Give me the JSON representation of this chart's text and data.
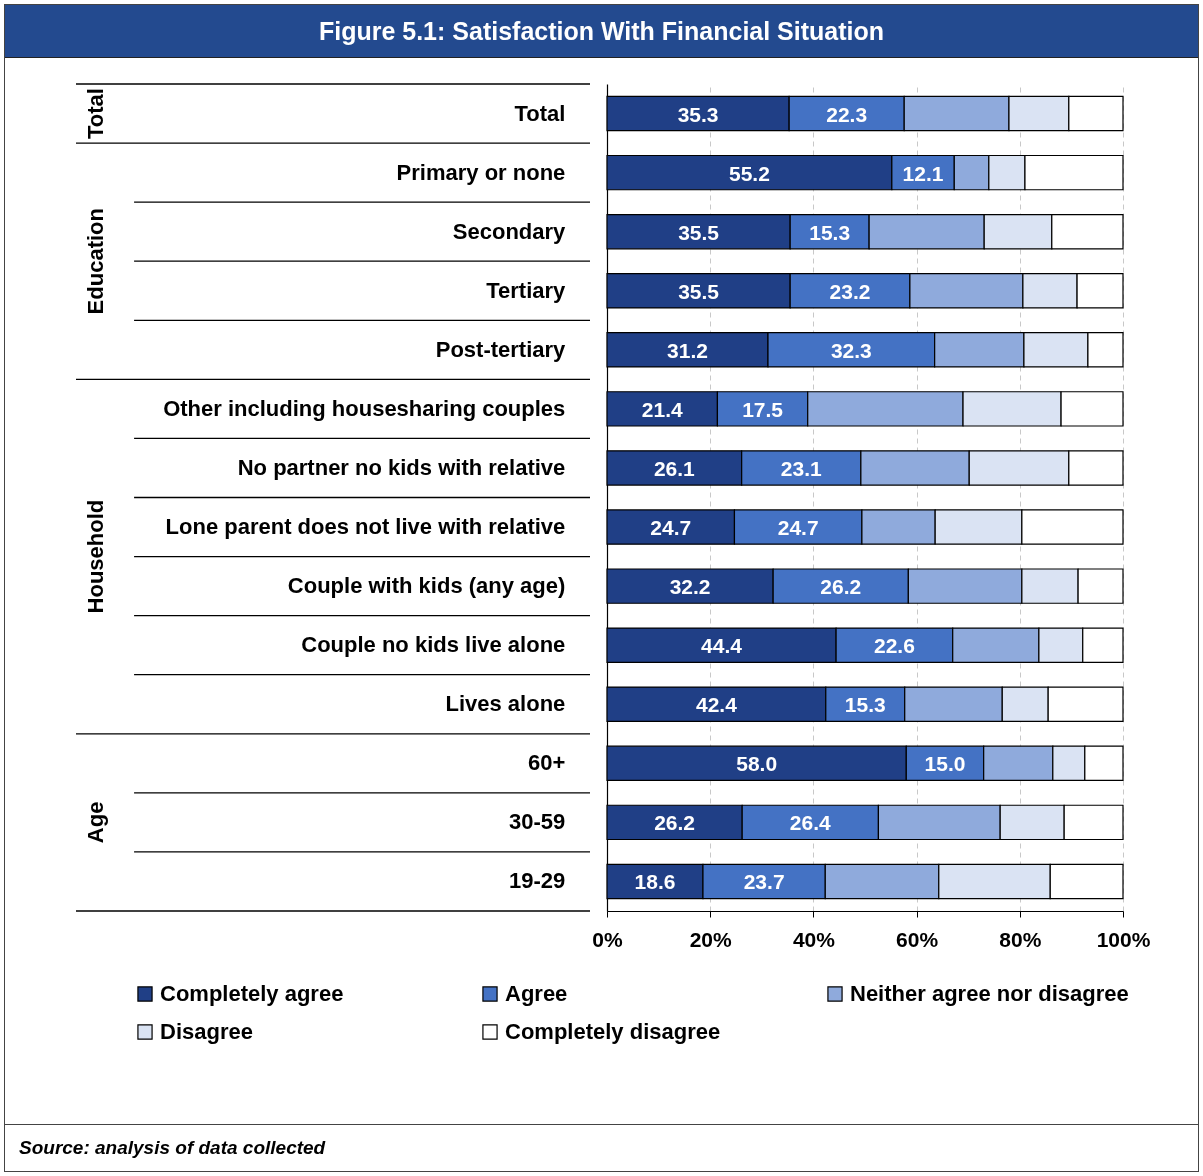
{
  "chart_data": {
    "type": "bar",
    "orientation": "horizontal",
    "stacked": true,
    "title": "Figure 5.1: Satisfaction With Financial Situation",
    "categories": [
      "Total",
      "Primary or none",
      "Secondary",
      "Tertiary",
      "Post-tertiary",
      "Other including housesharing couples",
      "No partner no kids with relative",
      "Lone parent does not live with relative",
      "Couple with kids (any age)",
      "Couple no kids live alone",
      "Lives alone",
      "60+",
      "30-59",
      "19-29"
    ],
    "series": [
      {
        "name": "Completely agree",
        "color": "#203f86",
        "values": [
          35.3,
          55.2,
          35.5,
          35.5,
          31.2,
          21.4,
          26.1,
          24.7,
          32.2,
          44.4,
          42.4,
          58.0,
          26.2,
          18.6
        ],
        "value_labels": [
          "35.3",
          "55.2",
          "35.5",
          "35.5",
          "31.2",
          "21.4",
          "26.1",
          "24.7",
          "32.2",
          "44.4",
          "42.4",
          "58.0",
          "26.2",
          "18.6"
        ]
      },
      {
        "name": "Agree",
        "color": "#4472c4",
        "values": [
          22.3,
          12.1,
          15.3,
          23.2,
          32.3,
          17.5,
          23.1,
          24.7,
          26.2,
          22.6,
          15.3,
          15.0,
          26.4,
          23.7
        ],
        "value_labels": [
          "22.3",
          "12.1",
          "15.3",
          "23.2",
          "32.3",
          "17.5",
          "23.1",
          "24.7",
          "26.2",
          "22.6",
          "15.3",
          "15.0",
          "26.4",
          "23.7"
        ]
      },
      {
        "name": "Neither agree nor disagree",
        "color": "#8faadc",
        "values": [
          20.3,
          6.7,
          22.3,
          21.9,
          17.3,
          30.1,
          21.0,
          14.2,
          22.0,
          16.7,
          18.9,
          13.4,
          23.6,
          22.0
        ]
      },
      {
        "name": "Disagree",
        "color": "#dae3f3",
        "values": [
          11.6,
          7.0,
          13.1,
          10.5,
          12.4,
          19.0,
          19.3,
          16.8,
          10.9,
          8.5,
          8.9,
          6.2,
          12.4,
          21.6
        ]
      },
      {
        "name": "Completely disagree",
        "color": "#ffffff",
        "values": [
          10.5,
          19.0,
          13.8,
          8.9,
          6.8,
          12.0,
          10.5,
          19.6,
          8.7,
          7.8,
          14.5,
          7.4,
          11.4,
          14.1
        ]
      }
    ],
    "xlim": [
      0,
      100
    ],
    "xticks": [
      {
        "value": 0,
        "label": "0%"
      },
      {
        "value": 20,
        "label": "20%"
      },
      {
        "value": 40,
        "label": "40%"
      },
      {
        "value": 60,
        "label": "60%"
      },
      {
        "value": 80,
        "label": "80%"
      },
      {
        "value": 100,
        "label": "100%"
      }
    ],
    "grid": "x",
    "legend": "bottom",
    "annotations": [
      "Total",
      "Education",
      "Household",
      "Age",
      "Source: analysis of data collected"
    ]
  }
}
